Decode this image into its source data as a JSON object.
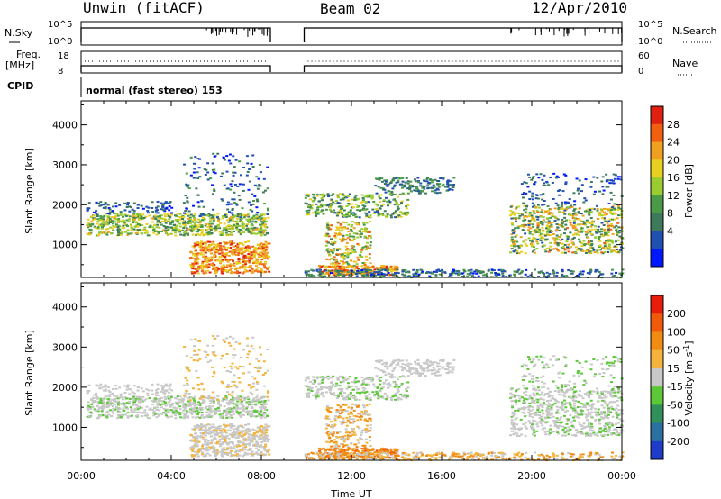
{
  "chart_data": {
    "type": "heatmap",
    "header": {
      "station": "Unwin (fitACF)",
      "beam": "Beam 02",
      "date": "12/Apr/2010"
    },
    "status_panels": {
      "nsky_label": "N.Sky",
      "nsky_ticks": [
        "10^5",
        "10^0"
      ],
      "nsearch_label": "N.Search",
      "freq_label_1": "Freq.",
      "freq_label_2": "[MHz]",
      "freq_ticks": [
        "18",
        "8"
      ],
      "nave_label": "Nave",
      "nave_ticks": [
        "60",
        "0"
      ],
      "nsearch_ticks": [
        "10^5",
        "10^0"
      ],
      "cpid_label": "CPID",
      "cpid_text": "normal (fast stereo) 153",
      "data_gap_hours": [
        8.4,
        9.9
      ]
    },
    "x_axis": {
      "label": "Time UT",
      "range_hours": [
        0,
        24
      ],
      "tick_hours": [
        0,
        4,
        8,
        12,
        16,
        20,
        24
      ],
      "tick_labels": [
        "00:00",
        "04:00",
        "08:00",
        "12:00",
        "16:00",
        "20:00",
        "00:00"
      ]
    },
    "y_axis": {
      "label": "Slant Range [km]",
      "range_km": [
        180,
        4600
      ],
      "tick_values": [
        1000,
        2000,
        3000,
        4000
      ],
      "tick_labels": [
        "1000",
        "2000",
        "3000",
        "4000"
      ]
    },
    "power_panel": {
      "colorbar_label": "Power [dB]",
      "colorbar_ticks": [
        "4",
        "8",
        "12",
        "16",
        "20",
        "24",
        "28"
      ],
      "colorbar_tick_values": [
        4,
        8,
        12,
        16,
        20,
        24,
        28
      ],
      "range_db": [
        0,
        32
      ],
      "colors": [
        "#0018ff",
        "#2050b0",
        "#3d7a5c",
        "#4a9a48",
        "#9acc30",
        "#e8d020",
        "#f0a020",
        "#f06010",
        "#e02010"
      ]
    },
    "velocity_panel": {
      "colorbar_label_main": "Velocity [m s",
      "colorbar_label_sup": "-1",
      "colorbar_label_end": "]",
      "colorbar_ticks": [
        "200",
        "100",
        "50",
        "15",
        "-15",
        "-50",
        "-100",
        "-200"
      ],
      "colors": [
        "#1e3cc8",
        "#2a70a0",
        "#30905a",
        "#5cc838",
        "#c8c8c8",
        "#f4b43c",
        "#f08c14",
        "#f05a0a",
        "#e81c0a"
      ]
    }
  }
}
